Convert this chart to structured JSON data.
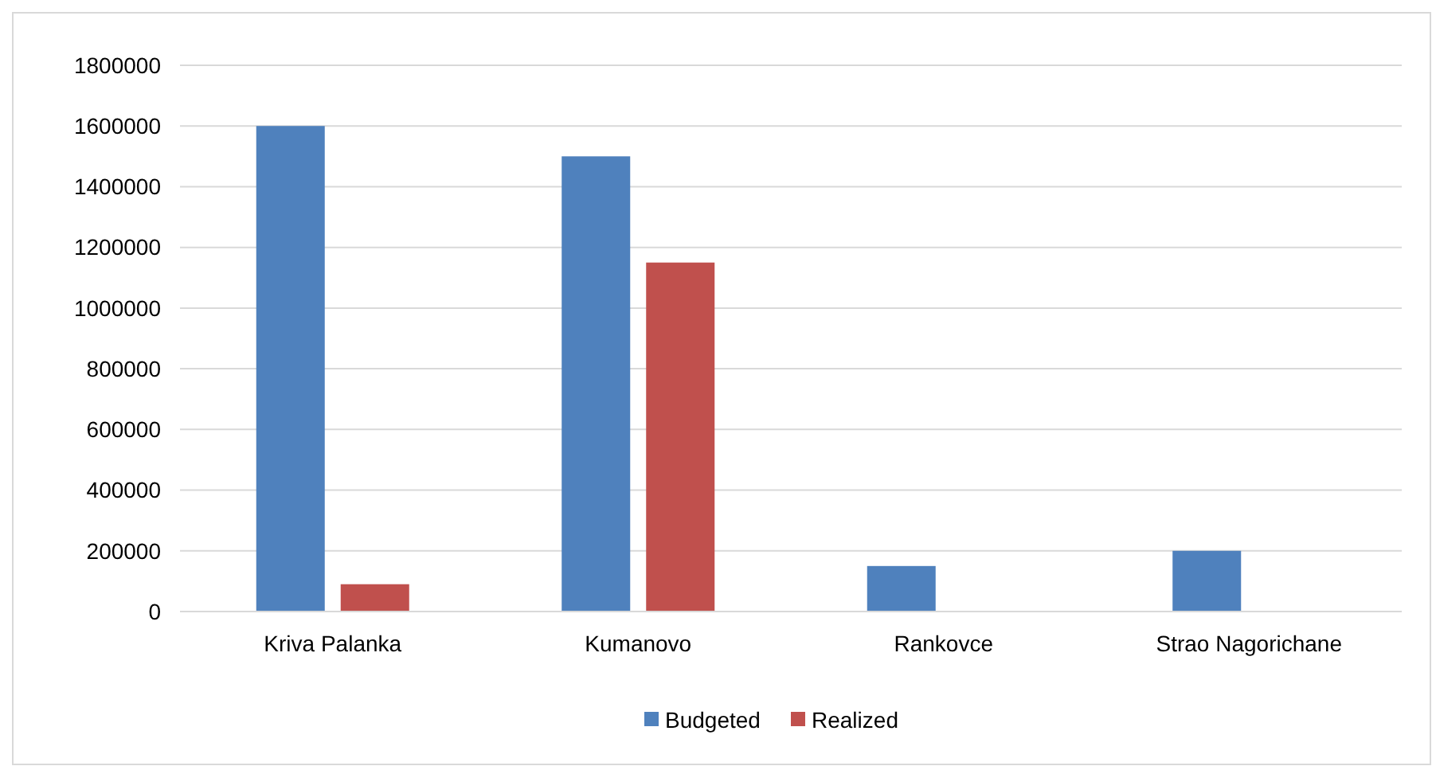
{
  "chart_data": {
    "type": "bar",
    "categories": [
      "Kriva Palanka",
      "Kumanovo",
      "Rankovce",
      "Strao Nagorichane"
    ],
    "series": [
      {
        "name": "Budgeted",
        "color": "#4f81bd",
        "values": [
          1600000,
          1500000,
          150000,
          200000
        ]
      },
      {
        "name": "Realized",
        "color": "#c0504d",
        "values": [
          90000,
          1150000,
          null,
          null
        ]
      }
    ],
    "ylim": [
      0,
      1800000
    ],
    "yticks": [
      0,
      200000,
      400000,
      600000,
      800000,
      1000000,
      1200000,
      1400000,
      1600000,
      1800000
    ],
    "grid": "y",
    "legend": "bottom"
  }
}
